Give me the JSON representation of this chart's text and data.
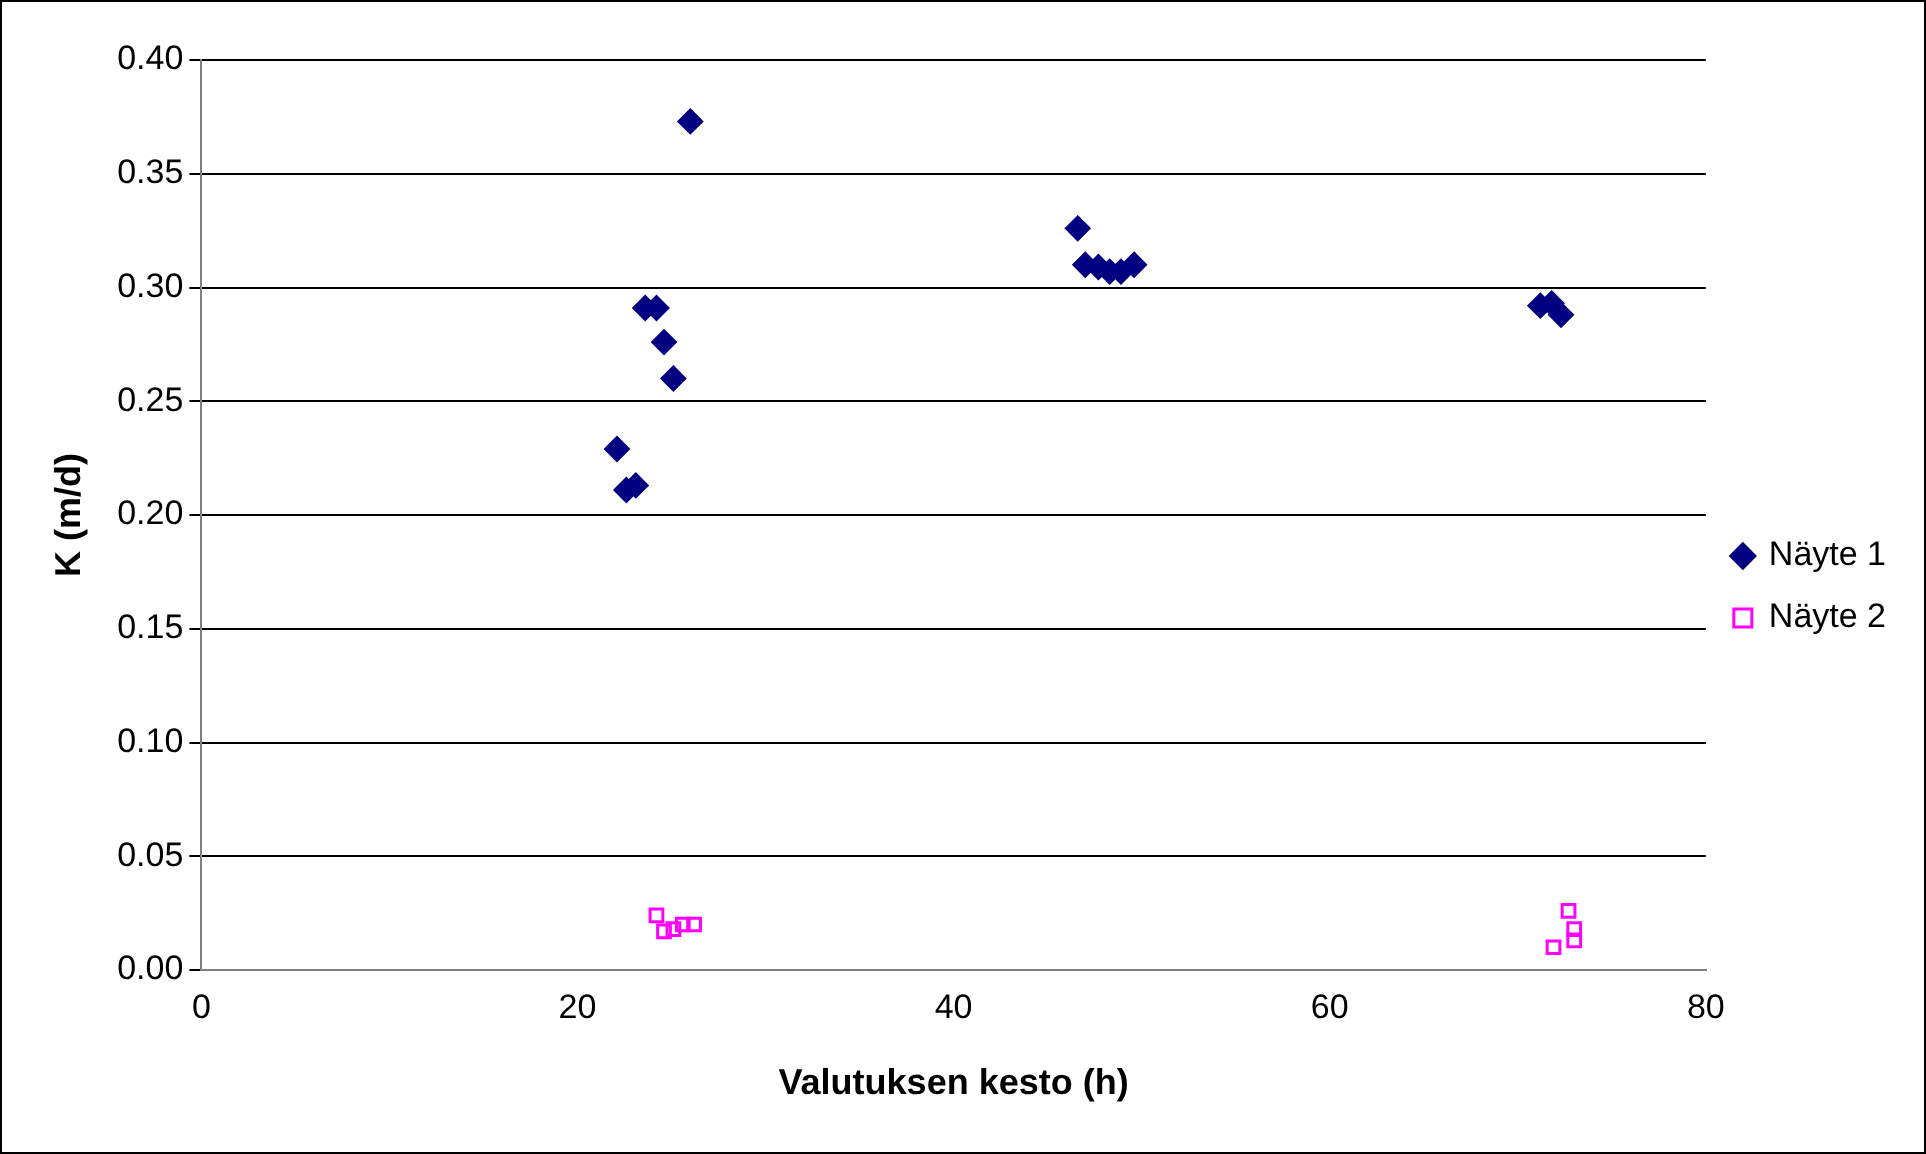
{
  "chart_data": {
    "type": "scatter",
    "xlabel": "Valutuksen kesto (h)",
    "ylabel": "K (m/d)",
    "xlim": [
      0,
      80
    ],
    "xticks": [
      0,
      20,
      40,
      60,
      80
    ],
    "ylim": [
      0,
      0.4
    ],
    "yticks": [
      {
        "value": 0,
        "label": "0.00"
      },
      {
        "value": 0.05,
        "label": "0.05"
      },
      {
        "value": 0.1,
        "label": "0.10"
      },
      {
        "value": 0.15,
        "label": "0.15"
      },
      {
        "value": 0.2,
        "label": "0.20"
      },
      {
        "value": 0.25,
        "label": "0.25"
      },
      {
        "value": 0.3,
        "label": "0.30"
      },
      {
        "value": 0.35,
        "label": "0.35"
      },
      {
        "value": 0.4,
        "label": "0.40"
      }
    ],
    "grid": "y",
    "legend": "right",
    "series": [
      {
        "name": "Näyte 1",
        "color": "#000080",
        "marker": "diamond",
        "x": [
          26.0,
          23.6,
          24.2,
          24.6,
          25.1,
          22.1,
          22.6,
          23.1,
          46.6,
          47.0,
          47.7,
          48.3,
          48.9,
          49.6,
          71.2,
          71.8,
          72.3
        ],
        "values": [
          0.373,
          0.291,
          0.291,
          0.276,
          0.26,
          0.229,
          0.211,
          0.213,
          0.326,
          0.31,
          0.309,
          0.307,
          0.307,
          0.31,
          0.292,
          0.293,
          0.288
        ]
      },
      {
        "name": "Näyte 2",
        "color": "#ff00ff",
        "marker": "square",
        "x": [
          24.2,
          24.6,
          25.1,
          25.6,
          26.2,
          72.7,
          71.9,
          73.0,
          73.0
        ],
        "values": [
          0.024,
          0.017,
          0.018,
          0.02,
          0.02,
          0.026,
          0.01,
          0.013,
          0.018
        ]
      }
    ]
  }
}
